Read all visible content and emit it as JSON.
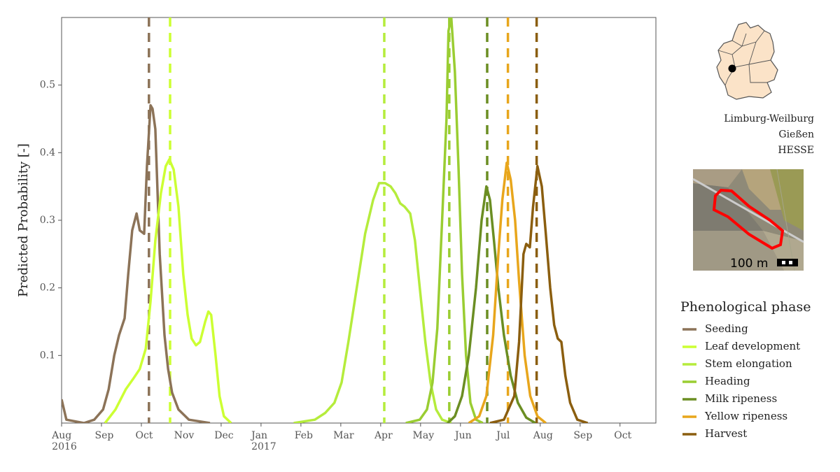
{
  "chart_data": {
    "type": "line",
    "y_label": "Predicted Probability [-]",
    "xlim": [
      0,
      14.9
    ],
    "ylim": [
      0,
      0.6
    ],
    "xticks": [
      {
        "value": 0,
        "label": "Aug\n2016"
      },
      {
        "value": 1,
        "label": "Sep"
      },
      {
        "value": 2,
        "label": "Oct"
      },
      {
        "value": 3,
        "label": "Nov"
      },
      {
        "value": 4,
        "label": "Dec"
      },
      {
        "value": 5,
        "label": "Jan\n2017"
      },
      {
        "value": 6,
        "label": "Feb"
      },
      {
        "value": 7,
        "label": "Mar"
      },
      {
        "value": 8,
        "label": "Apr"
      },
      {
        "value": 9,
        "label": "May"
      },
      {
        "value": 10,
        "label": "Jun"
      },
      {
        "value": 11,
        "label": "Jul"
      },
      {
        "value": 12,
        "label": "Aug"
      },
      {
        "value": 13,
        "label": "Sep"
      },
      {
        "value": 14,
        "label": "Oct"
      }
    ],
    "yticks": [
      0.1,
      0.2,
      0.3,
      0.4,
      0.5
    ],
    "grid": false,
    "legend": "right",
    "legend_title": "Phenological phase",
    "location_labels": [
      "Limburg-Weilburg",
      "Gießen",
      "HESSE"
    ],
    "scale_label": "100 m",
    "series": [
      {
        "name": "Seeding",
        "color": "#8c7358",
        "vline": 2.19,
        "x": [
          0,
          0.12,
          0.56,
          0.82,
          1.04,
          1.18,
          1.32,
          1.44,
          1.58,
          1.67,
          1.77,
          1.88,
          1.96,
          2.07,
          2.14,
          2.23,
          2.28,
          2.35,
          2.46,
          2.58,
          2.67,
          2.77,
          2.93,
          3.19,
          3.72
        ],
        "values": [
          0.035,
          0.005,
          0,
          0.005,
          0.02,
          0.05,
          0.1,
          0.13,
          0.155,
          0.22,
          0.285,
          0.31,
          0.285,
          0.28,
          0.38,
          0.47,
          0.465,
          0.435,
          0.25,
          0.13,
          0.08,
          0.045,
          0.02,
          0.005,
          0
        ]
      },
      {
        "name": "Leaf development",
        "color": "#ccff33",
        "vline": 2.72,
        "x": [
          1.09,
          1.35,
          1.61,
          1.79,
          1.96,
          2.11,
          2.23,
          2.35,
          2.49,
          2.61,
          2.7,
          2.81,
          2.93,
          3.05,
          3.16,
          3.26,
          3.37,
          3.47,
          3.6,
          3.68,
          3.75,
          3.86,
          3.96,
          4.07,
          4.25
        ],
        "values": [
          0,
          0.02,
          0.05,
          0.065,
          0.08,
          0.11,
          0.18,
          0.27,
          0.34,
          0.38,
          0.39,
          0.375,
          0.32,
          0.22,
          0.16,
          0.125,
          0.115,
          0.12,
          0.15,
          0.165,
          0.16,
          0.1,
          0.04,
          0.01,
          0
        ]
      },
      {
        "name": "Stem elongation",
        "color": "#b5ec3c",
        "vline": 8.09,
        "x": [
          5.82,
          6.35,
          6.61,
          6.84,
          7.02,
          7.19,
          7.4,
          7.61,
          7.81,
          7.96,
          8.11,
          8.25,
          8.37,
          8.49,
          8.6,
          8.74,
          8.86,
          8.98,
          9.12,
          9.25,
          9.39,
          9.54,
          9.77
        ],
        "values": [
          0,
          0.005,
          0.015,
          0.03,
          0.06,
          0.12,
          0.2,
          0.28,
          0.33,
          0.355,
          0.355,
          0.35,
          0.34,
          0.325,
          0.32,
          0.31,
          0.27,
          0.2,
          0.12,
          0.06,
          0.02,
          0.005,
          0
        ]
      },
      {
        "name": "Heading",
        "color": "#9acd32",
        "vline": 9.72,
        "x": [
          8.63,
          8.98,
          9.16,
          9.3,
          9.42,
          9.54,
          9.65,
          9.7,
          9.77,
          9.86,
          9.95,
          10.04,
          10.14,
          10.25,
          10.39,
          10.56
        ],
        "values": [
          0,
          0.005,
          0.02,
          0.06,
          0.14,
          0.3,
          0.45,
          0.58,
          0.6,
          0.52,
          0.38,
          0.22,
          0.1,
          0.03,
          0.005,
          0
        ]
      },
      {
        "name": "Milk ripeness",
        "color": "#6b8e23",
        "vline": 10.67,
        "x": [
          9.68,
          9.86,
          10.04,
          10.21,
          10.39,
          10.53,
          10.65,
          10.74,
          10.84,
          10.95,
          11.09,
          11.26,
          11.44,
          11.65,
          11.88
        ],
        "values": [
          0,
          0.01,
          0.04,
          0.1,
          0.2,
          0.3,
          0.35,
          0.33,
          0.27,
          0.2,
          0.13,
          0.07,
          0.03,
          0.008,
          0
        ]
      },
      {
        "name": "Yellow ripeness",
        "color": "#e8a61c",
        "vline": 11.19,
        "x": [
          10.21,
          10.47,
          10.65,
          10.82,
          10.95,
          11.05,
          11.16,
          11.26,
          11.37,
          11.47,
          11.61,
          11.75,
          11.93,
          12.14
        ],
        "values": [
          0,
          0.01,
          0.04,
          0.13,
          0.25,
          0.33,
          0.385,
          0.36,
          0.3,
          0.21,
          0.1,
          0.04,
          0.01,
          0
        ]
      },
      {
        "name": "Harvest",
        "color": "#8b5e0f",
        "vline": 11.91,
        "x": [
          10.74,
          11.09,
          11.35,
          11.47,
          11.58,
          11.65,
          11.74,
          11.82,
          11.93,
          12.04,
          12.14,
          12.25,
          12.35,
          12.44,
          12.53,
          12.63,
          12.75,
          12.93,
          13.19
        ],
        "values": [
          0,
          0.005,
          0.04,
          0.12,
          0.25,
          0.265,
          0.26,
          0.32,
          0.38,
          0.35,
          0.28,
          0.2,
          0.145,
          0.125,
          0.12,
          0.07,
          0.03,
          0.005,
          0
        ]
      }
    ]
  }
}
